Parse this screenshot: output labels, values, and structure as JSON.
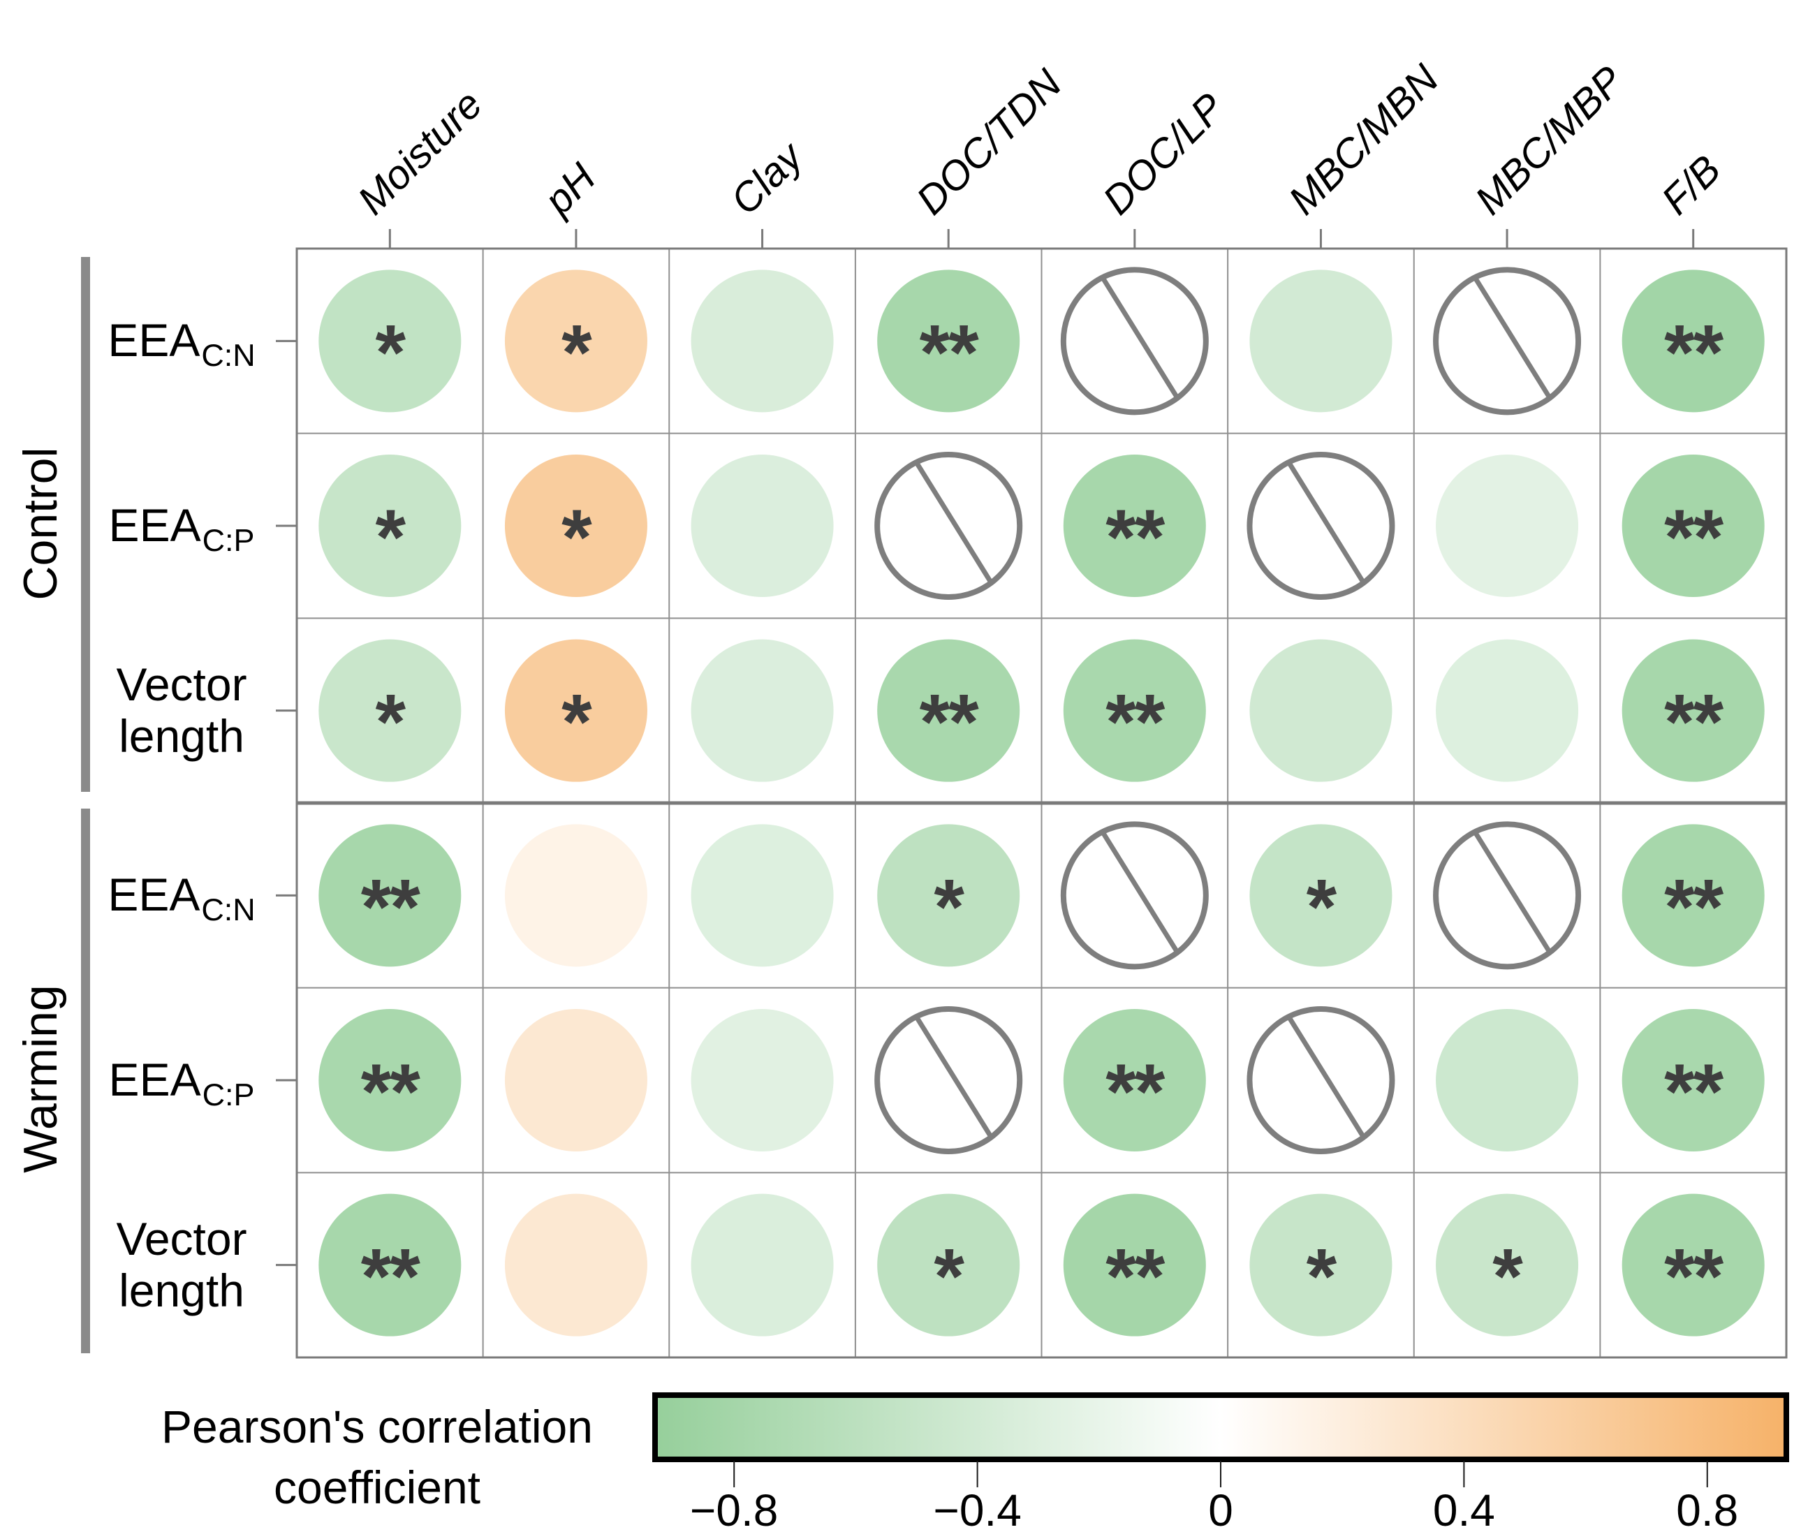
{
  "chart_data": {
    "type": "heatmap",
    "title": "",
    "value_encoding": "circle color = Pearson's correlation coefficient; crossed circle = not applicable; * p<0.05, ** p<0.01",
    "columns": [
      "Moisture",
      "pH",
      "Clay",
      "DOC/TDN",
      "DOC/LP",
      "MBC/MBN",
      "MBC/MBP",
      "F/B"
    ],
    "groups": [
      {
        "label": "Control"
      },
      {
        "label": "Warming"
      }
    ],
    "rows": [
      {
        "group": "Control",
        "label": "EEA C:N",
        "label_main": "EEA",
        "label_sub": "C:N",
        "values": [
          -0.55,
          0.5,
          -0.34,
          -0.78,
          null,
          -0.4,
          null,
          -0.82
        ],
        "significance": [
          "*",
          "*",
          "",
          "**",
          "NA",
          "",
          "NA",
          "**"
        ]
      },
      {
        "group": "Control",
        "label": "EEA C:P",
        "label_main": "EEA",
        "label_sub": "C:P",
        "values": [
          -0.5,
          0.6,
          -0.32,
          null,
          -0.78,
          null,
          -0.25,
          -0.8
        ],
        "significance": [
          "*",
          "*",
          "",
          "NA",
          "**",
          "NA",
          "",
          "**"
        ]
      },
      {
        "group": "Control",
        "label": "Vector length",
        "label_main": "Vector length",
        "label_sub": "",
        "values": [
          -0.48,
          0.6,
          -0.32,
          -0.76,
          -0.76,
          -0.42,
          -0.3,
          -0.78
        ],
        "significance": [
          "*",
          "*",
          "",
          "**",
          "**",
          "",
          "",
          "**"
        ]
      },
      {
        "group": "Warming",
        "label": "EEA C:N",
        "label_main": "EEA",
        "label_sub": "C:N",
        "values": [
          -0.78,
          0.15,
          -0.3,
          -0.58,
          null,
          -0.52,
          null,
          -0.78
        ],
        "significance": [
          "**",
          "",
          "",
          "*",
          "NA",
          "*",
          "NA",
          "**"
        ]
      },
      {
        "group": "Warming",
        "label": "EEA C:P",
        "label_main": "EEA",
        "label_sub": "C:P",
        "values": [
          -0.76,
          0.28,
          -0.27,
          null,
          -0.76,
          null,
          -0.45,
          -0.76
        ],
        "significance": [
          "**",
          "",
          "",
          "NA",
          "**",
          "NA",
          "",
          "**"
        ]
      },
      {
        "group": "Warming",
        "label": "Vector length",
        "label_main": "Vector length",
        "label_sub": "",
        "values": [
          -0.78,
          0.28,
          -0.33,
          -0.58,
          -0.8,
          -0.5,
          -0.48,
          -0.78
        ],
        "significance": [
          "**",
          "",
          "",
          "*",
          "**",
          "*",
          "*",
          "**"
        ]
      }
    ],
    "colorbar": {
      "range": [
        -0.93,
        0.93
      ],
      "ticks": [
        -0.8,
        -0.4,
        0,
        0.4,
        0.8
      ]
    }
  },
  "legend": {
    "line1": "Pearson's correlation",
    "line2": "coefficient",
    "tick_labels": [
      "−0.8",
      "−0.4",
      "0",
      "0.4",
      "0.8"
    ]
  },
  "colors": {
    "negative_end": "#96cf9b",
    "positive_end": "#f6b269",
    "na_stroke": "#7e7e7e",
    "grid_line": "#8f8f8f",
    "grid_border": "#7a7a7a",
    "group_divider": "#7a7a7a",
    "significance": "#3e3e3e",
    "colorbar_border": "#000000",
    "group_bar": "#8a8a8a"
  }
}
